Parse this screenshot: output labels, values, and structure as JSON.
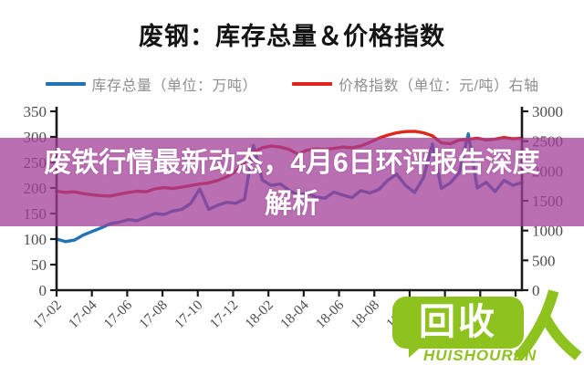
{
  "title": "废钢：库存总量＆价格指数",
  "legend": [
    {
      "label": "库存总量（单位：万吨）",
      "color": "#2374b5"
    },
    {
      "label": "价格指数（单位：元/吨）右轴",
      "color": "#e02419"
    }
  ],
  "banner": {
    "text": "废铁行情最新动态，4月6日环评报告深度解析",
    "line1": "废铁行情最新动态，4月6日环评报告深度",
    "line2": "解析"
  },
  "watermark": {
    "bubble_text": "回收",
    "brand_text": "HUISHOUREN",
    "color": "#8dc21f"
  },
  "colors": {
    "inventory_line": "#2374b5",
    "price_line": "#e02419",
    "banner_overlay": "#a13f98",
    "axis": "#1a1a1a",
    "tick_label": "#4c4c4c"
  },
  "chart_data": {
    "type": "line",
    "title": "废钢：库存总量＆价格指数",
    "categories": [
      "17-02",
      "17-04",
      "17-06",
      "17-08",
      "17-10",
      "17-12",
      "18-02",
      "18-04",
      "18-06",
      "18-08",
      "18-10",
      "18-12",
      "19-02",
      "19-04"
    ],
    "grid": false,
    "legend_position": "top",
    "left_axis": {
      "min": 0,
      "max": 350,
      "ticks": [
        350,
        300,
        250,
        200,
        150,
        100,
        50,
        0
      ]
    },
    "right_axis": {
      "min": 0,
      "max": 3000,
      "ticks": [
        3000,
        2500,
        2000,
        1500,
        1000,
        500,
        0
      ]
    },
    "series": [
      {
        "name": "库存总量（单位：万吨）",
        "axis": "left",
        "color": "#2374b5",
        "values": [
          100,
          95,
          98,
          108,
          115,
          122,
          130,
          133,
          138,
          136,
          143,
          150,
          148,
          155,
          158,
          170,
          198,
          158,
          166,
          172,
          170,
          178,
          283,
          215,
          205,
          208,
          195,
          186,
          190,
          182,
          180,
          192,
          186,
          181,
          195,
          190,
          197,
          215,
          227,
          205,
          191,
          220,
          286,
          199,
          210,
          230,
          306,
          200,
          211,
          193,
          215,
          205,
          211
        ]
      },
      {
        "name": "价格指数（单位：元/吨）右轴",
        "axis": "right",
        "color": "#e02419",
        "values": [
          1660,
          1640,
          1650,
          1620,
          1600,
          1585,
          1580,
          1610,
          1640,
          1660,
          1650,
          1700,
          1720,
          1705,
          1730,
          1755,
          1780,
          1800,
          1840,
          1900,
          1990,
          2150,
          2320,
          2390,
          2420,
          2400,
          2360,
          2280,
          2350,
          2370,
          2360,
          2380,
          2400,
          2390,
          2420,
          2480,
          2550,
          2600,
          2640,
          2660,
          2665,
          2640,
          2590,
          2470,
          2455,
          2520,
          2530,
          2550,
          2520,
          2535,
          2560,
          2540,
          2550
        ]
      }
    ]
  }
}
